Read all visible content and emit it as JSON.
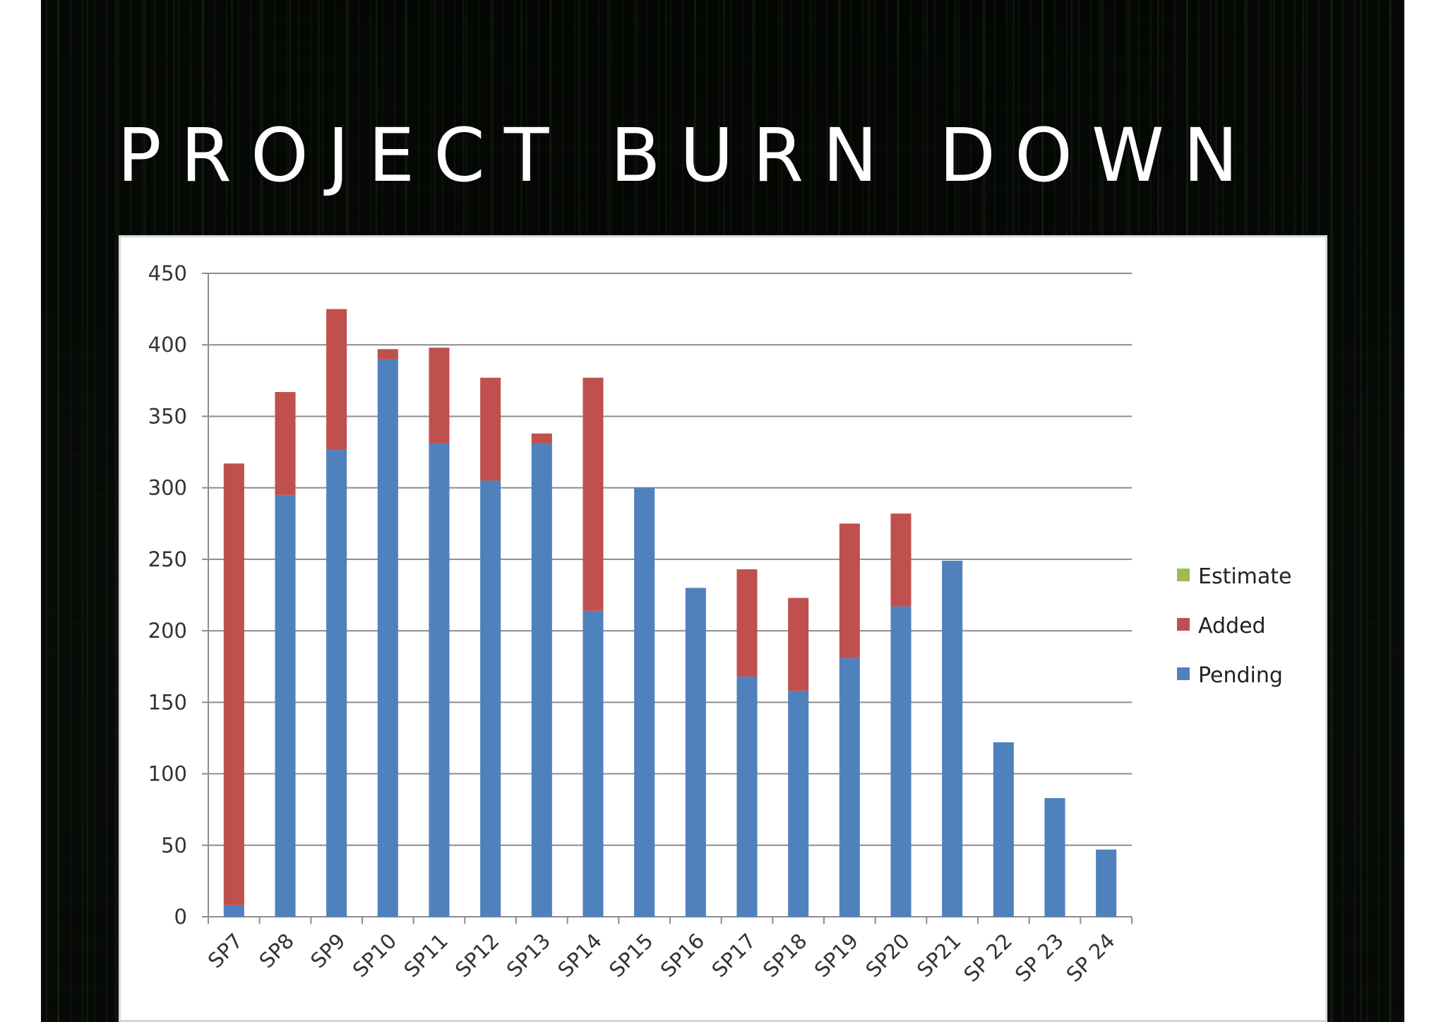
{
  "slide": {
    "title": "PROJECT BURN DOWN"
  },
  "chart_data": {
    "type": "bar",
    "stacked": true,
    "title": "",
    "xlabel": "",
    "ylabel": "",
    "categories": [
      "SP7",
      "SP8",
      "SP9",
      "SP10",
      "SP11",
      "SP12",
      "SP13",
      "SP14",
      "SP15",
      "SP16",
      "SP17",
      "SP18",
      "SP19",
      "SP20",
      "SP21",
      "SP 22",
      "SP 23",
      "SP 24"
    ],
    "series": [
      {
        "name": "Pending",
        "color": "#4f81bd",
        "values": [
          8,
          295,
          327,
          390,
          331,
          305,
          331,
          214,
          300,
          230,
          168,
          158,
          181,
          217,
          249,
          122,
          83,
          47
        ]
      },
      {
        "name": "Added",
        "color": "#c0504d",
        "values": [
          309,
          72,
          98,
          7,
          67,
          72,
          7,
          163,
          0,
          0,
          75,
          65,
          94,
          65,
          0,
          0,
          0,
          0
        ]
      },
      {
        "name": "Estimate",
        "color": "#9bbb59",
        "values": [
          0,
          0,
          0,
          0,
          0,
          0,
          0,
          0,
          0,
          0,
          0,
          0,
          0,
          0,
          0,
          0,
          0,
          0
        ]
      }
    ],
    "legend_order": [
      "Estimate",
      "Added",
      "Pending"
    ],
    "legend_position": "right",
    "ylim": [
      0,
      450
    ],
    "yticks": [
      0,
      50,
      100,
      150,
      200,
      250,
      300,
      350,
      400,
      450
    ],
    "grid": true,
    "x_tick_rotation": -45
  }
}
